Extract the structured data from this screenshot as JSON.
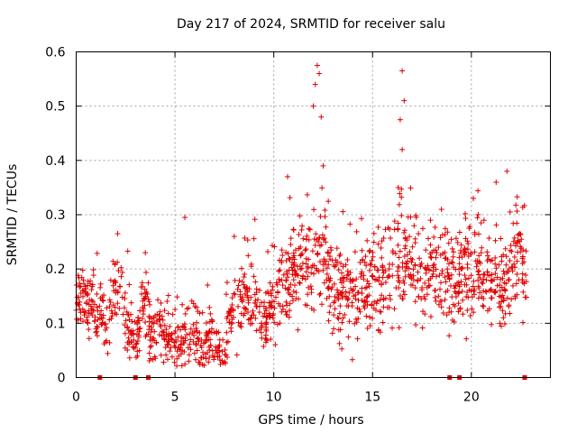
{
  "chart_data": {
    "type": "scatter",
    "title": "Day 217 of 2024, SRMTID for receiver salu",
    "xlabel": "GPS time / hours",
    "ylabel": "SRMTID / TECUs",
    "xlim": [
      0,
      24
    ],
    "ylim": [
      0,
      0.6
    ],
    "xticks": [
      0,
      5,
      10,
      15,
      20
    ],
    "xtick_labels": [
      "0",
      "5",
      "10",
      "15",
      "20"
    ],
    "yticks": [
      0,
      0.1,
      0.2,
      0.3,
      0.4,
      0.5,
      0.6
    ],
    "ytick_labels": [
      "0",
      "0.1",
      "0.2",
      "0.3",
      "0.4",
      "0.5",
      "0.6"
    ],
    "grid": true,
    "marker": "plus",
    "series": [
      {
        "name": "SRMTID",
        "color": "#e00000",
        "profile": [
          {
            "x": 0.0,
            "y": 0.14
          },
          {
            "x": 0.3,
            "y": 0.15
          },
          {
            "x": 0.6,
            "y": 0.13
          },
          {
            "x": 0.8,
            "y": 0.15
          },
          {
            "x": 1.0,
            "y": 0.1
          },
          {
            "x": 1.3,
            "y": 0.12
          },
          {
            "x": 1.6,
            "y": 0.1
          },
          {
            "x": 2.0,
            "y": 0.17
          },
          {
            "x": 2.2,
            "y": 0.19
          },
          {
            "x": 2.5,
            "y": 0.09
          },
          {
            "x": 3.0,
            "y": 0.07
          },
          {
            "x": 3.3,
            "y": 0.11
          },
          {
            "x": 3.5,
            "y": 0.14
          },
          {
            "x": 3.8,
            "y": 0.08
          },
          {
            "x": 4.2,
            "y": 0.08
          },
          {
            "x": 4.6,
            "y": 0.09
          },
          {
            "x": 5.0,
            "y": 0.07
          },
          {
            "x": 5.5,
            "y": 0.08
          },
          {
            "x": 6.0,
            "y": 0.08
          },
          {
            "x": 6.5,
            "y": 0.07
          },
          {
            "x": 7.0,
            "y": 0.06
          },
          {
            "x": 7.5,
            "y": 0.06
          },
          {
            "x": 8.0,
            "y": 0.12
          },
          {
            "x": 8.5,
            "y": 0.15
          },
          {
            "x": 9.0,
            "y": 0.14
          },
          {
            "x": 9.5,
            "y": 0.11
          },
          {
            "x": 10.0,
            "y": 0.13
          },
          {
            "x": 10.5,
            "y": 0.18
          },
          {
            "x": 11.0,
            "y": 0.19
          },
          {
            "x": 11.5,
            "y": 0.2
          },
          {
            "x": 12.0,
            "y": 0.21
          },
          {
            "x": 12.5,
            "y": 0.22
          },
          {
            "x": 13.0,
            "y": 0.17
          },
          {
            "x": 13.5,
            "y": 0.17
          },
          {
            "x": 14.0,
            "y": 0.17
          },
          {
            "x": 14.5,
            "y": 0.17
          },
          {
            "x": 15.0,
            "y": 0.17
          },
          {
            "x": 15.5,
            "y": 0.18
          },
          {
            "x": 16.0,
            "y": 0.19
          },
          {
            "x": 16.5,
            "y": 0.22
          },
          {
            "x": 17.0,
            "y": 0.21
          },
          {
            "x": 17.5,
            "y": 0.18
          },
          {
            "x": 18.0,
            "y": 0.2
          },
          {
            "x": 18.5,
            "y": 0.19
          },
          {
            "x": 19.0,
            "y": 0.17
          },
          {
            "x": 19.5,
            "y": 0.18
          },
          {
            "x": 20.0,
            "y": 0.2
          },
          {
            "x": 20.5,
            "y": 0.21
          },
          {
            "x": 21.0,
            "y": 0.17
          },
          {
            "x": 21.5,
            "y": 0.16
          },
          {
            "x": 22.0,
            "y": 0.21
          },
          {
            "x": 22.5,
            "y": 0.24
          },
          {
            "x": 22.8,
            "y": 0.15
          }
        ],
        "notable_points": [
          {
            "x": 5.5,
            "y": 0.295
          },
          {
            "x": 8.0,
            "y": 0.26
          },
          {
            "x": 10.7,
            "y": 0.37
          },
          {
            "x": 12.1,
            "y": 0.54
          },
          {
            "x": 12.2,
            "y": 0.575
          },
          {
            "x": 12.3,
            "y": 0.56
          },
          {
            "x": 12.0,
            "y": 0.5
          },
          {
            "x": 12.4,
            "y": 0.48
          },
          {
            "x": 12.5,
            "y": 0.39
          },
          {
            "x": 16.4,
            "y": 0.475
          },
          {
            "x": 16.5,
            "y": 0.565
          },
          {
            "x": 16.6,
            "y": 0.51
          },
          {
            "x": 16.5,
            "y": 0.42
          },
          {
            "x": 16.3,
            "y": 0.35
          },
          {
            "x": 20.1,
            "y": 0.33
          },
          {
            "x": 21.8,
            "y": 0.38
          },
          {
            "x": 2.1,
            "y": 0.265
          },
          {
            "x": 3.5,
            "y": 0.23
          }
        ],
        "zero_points_x": [
          1.2,
          3.0,
          3.65,
          18.9,
          19.4,
          22.7
        ]
      }
    ]
  }
}
